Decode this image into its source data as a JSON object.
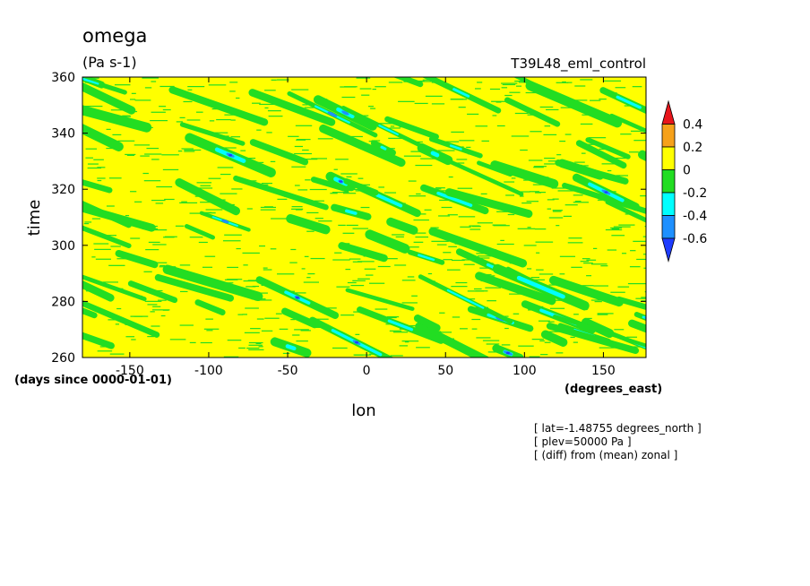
{
  "chart_data": {
    "type": "heatmap",
    "title": "omega",
    "units": "(Pa s-1)",
    "experiment": "T39L48_eml_control",
    "xlabel": "lon",
    "ylabel": "time",
    "x_units": "(degrees_east)",
    "y_units": "(days since 0000-01-01)",
    "xlim": [
      -180,
      177
    ],
    "ylim": [
      260,
      360
    ],
    "x_ticks": [
      -150,
      -100,
      -50,
      0,
      50,
      100,
      150
    ],
    "x_tick_labels": [
      "-150",
      "-100",
      "-50",
      "0",
      "50",
      "100",
      "150"
    ],
    "y_ticks": [
      260,
      280,
      300,
      320,
      340,
      360
    ],
    "y_tick_labels": [
      "260",
      "280",
      "300",
      "320",
      "340",
      "360"
    ],
    "colorbar": {
      "levels": [
        0.4,
        0.2,
        0,
        -0.2,
        -0.4,
        -0.6
      ],
      "labels": [
        "0.4",
        "0.2",
        "0",
        "-0.2",
        "-0.4",
        "-0.6"
      ],
      "colors": [
        "#e8151b",
        "#f6a11a",
        "#ffff00",
        "#22dd22",
        "#00ffff",
        "#1e90ff",
        "#1e3cff"
      ],
      "extend": "both"
    },
    "background_color": "#ffff00",
    "notes": [
      "[ lat=-1.48755 degrees_north ]",
      "[ plev=50000 Pa ]",
      "[ (diff) from (mean) zonal ]"
    ]
  }
}
